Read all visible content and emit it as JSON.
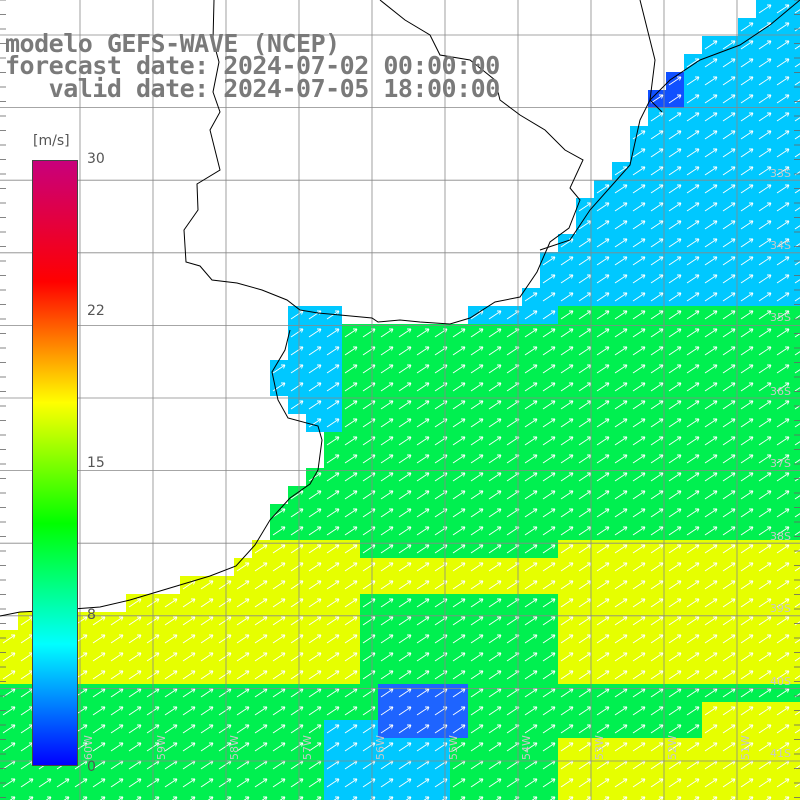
{
  "header": {
    "line1": "modelo GEFS-WAVE (NCEP)",
    "line2": "forecast date: 2024-07-02 00:00:00",
    "line3": "   valid date: 2024-07-05 18:00:00"
  },
  "colorbar": {
    "unit": "[m/s]",
    "ticks": [
      "30",
      "22",
      "15",
      "8",
      "0"
    ],
    "min": 0,
    "max": 30,
    "colors": [
      "#0000ff",
      "#00ffff",
      "#00ff00",
      "#ffff00",
      "#ff0000",
      "#c8007c"
    ]
  },
  "lat_labels": [
    "33S",
    "34S",
    "35S",
    "36S",
    "37S",
    "38S",
    "39S",
    "40S",
    "41S"
  ],
  "lon_labels": [
    "60W",
    "59W",
    "58W",
    "57W",
    "56W",
    "55W",
    "54W",
    "53W",
    "52W",
    "51W"
  ],
  "field": {
    "variable": "wind speed",
    "arrow_direction": "toward north-east",
    "colors": {
      "blue": "#1e64ff",
      "cyan": "#00c8ff",
      "green": "#00f050",
      "yellow": "#e6ff00",
      "land": "#ffffff",
      "coast": "#000000",
      "grid": "#888888"
    }
  }
}
